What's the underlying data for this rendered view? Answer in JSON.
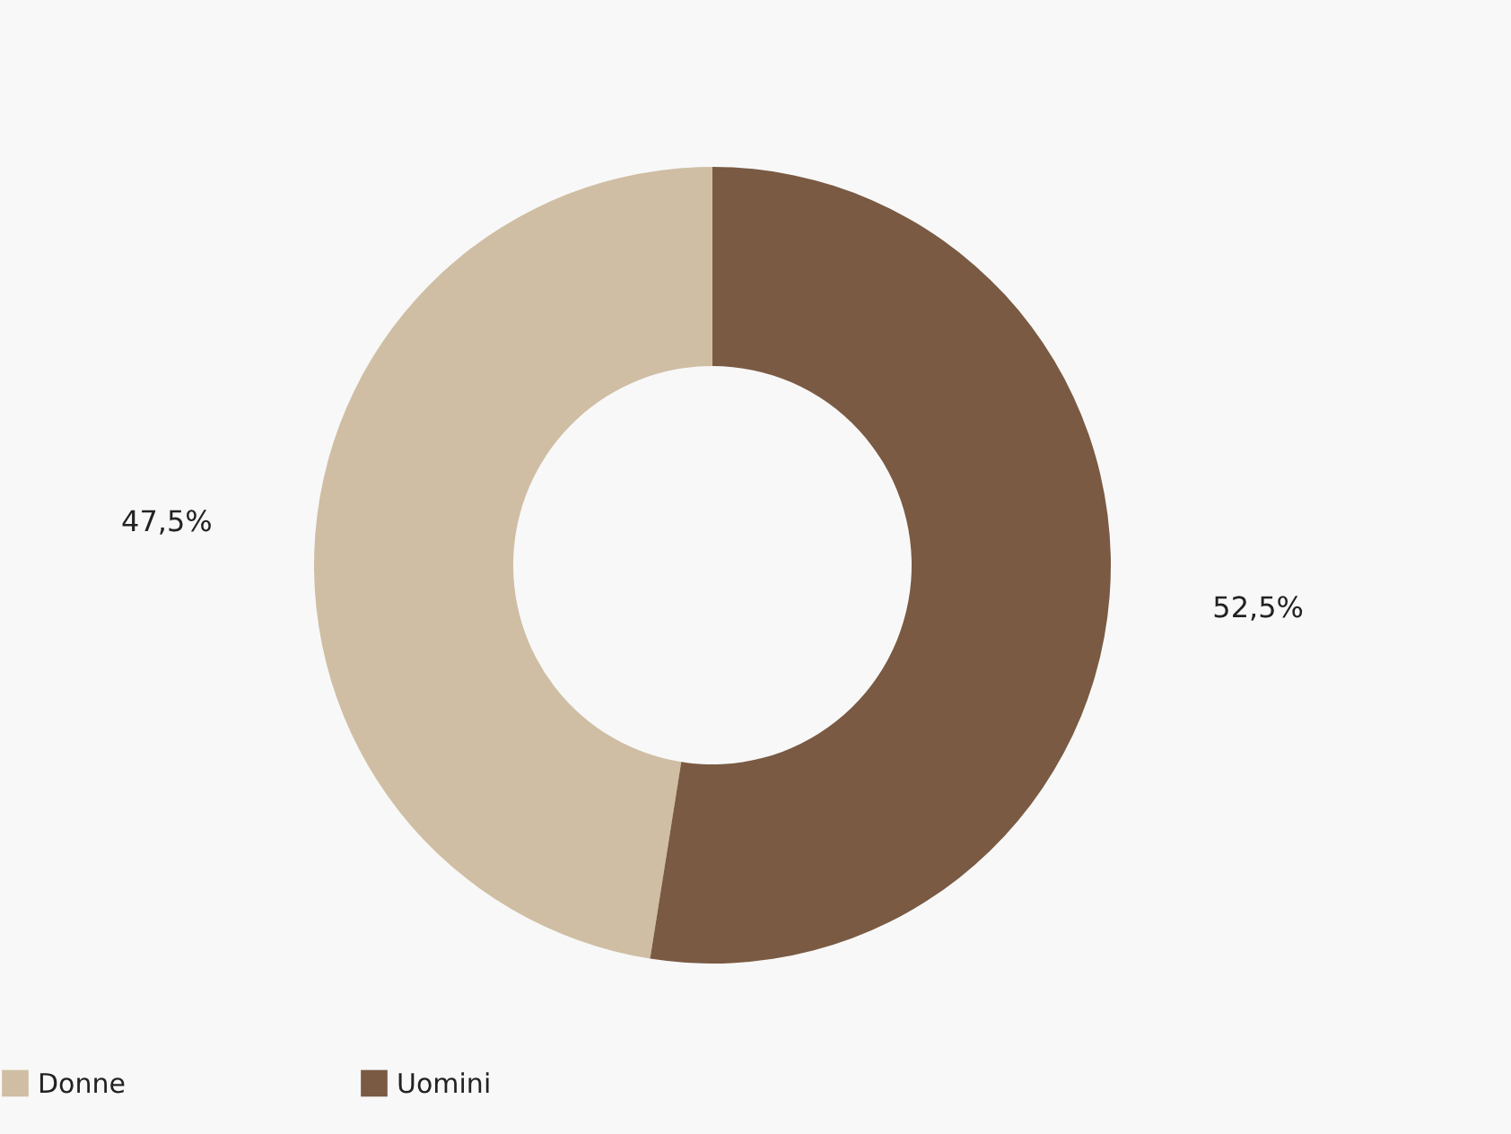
{
  "chart_data": {
    "type": "donut",
    "categories": [
      "Donne",
      "Uomini"
    ],
    "values": [
      47.5,
      52.5
    ],
    "colors": [
      "#cfbea3",
      "#7a5a43"
    ],
    "value_labels": [
      "47,5%",
      "52,5%"
    ],
    "legend": "bottom"
  }
}
